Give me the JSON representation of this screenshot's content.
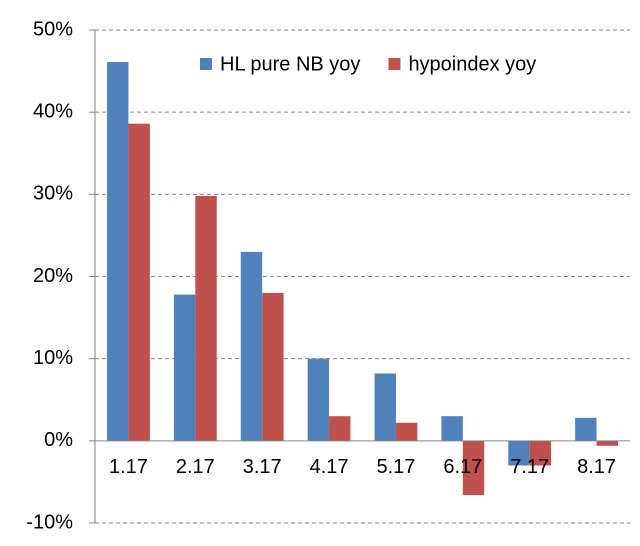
{
  "chart_data": {
    "type": "bar",
    "categories": [
      "1.17",
      "2.17",
      "3.17",
      "4.17",
      "5.17",
      "6.17",
      "7.17",
      "8.17"
    ],
    "series": [
      {
        "name": "HL pure NB yoy",
        "color": "#4f81bd",
        "values": [
          46.1,
          17.8,
          23.0,
          10.0,
          8.2,
          3.0,
          -3.0,
          2.8
        ]
      },
      {
        "name": "hypoindex yoy",
        "color": "#c0504d",
        "values": [
          38.6,
          29.8,
          18.0,
          3.0,
          2.2,
          -6.6,
          -3.0,
          -0.6
        ]
      }
    ],
    "ylim": [
      -10,
      50
    ],
    "yticks": [
      {
        "value": -10,
        "label": "-10%"
      },
      {
        "value": 0,
        "label": "0%"
      },
      {
        "value": 10,
        "label": "10%"
      },
      {
        "value": 20,
        "label": "20%"
      },
      {
        "value": 30,
        "label": "30%"
      },
      {
        "value": 40,
        "label": "40%"
      },
      {
        "value": 50,
        "label": "50%"
      }
    ],
    "grid": true,
    "legend": "top-right"
  }
}
